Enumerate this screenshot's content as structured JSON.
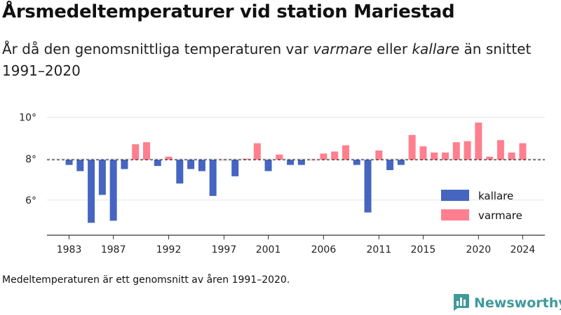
{
  "header": {
    "title": "Årsmedeltemperaturer vid station Mariestad",
    "subtitle_parts": {
      "prefix": "År då den genomsnittliga temperaturen var ",
      "warmer": "varmare",
      "middle": " eller ",
      "colder": "kallare",
      "suffix": " än snittet 1991–2020"
    }
  },
  "footnote": "Medeltemperaturen är ett genomsnitt av åren 1991–2020.",
  "brand": {
    "name": "Newsworthy",
    "icon": "newsworthy-logo-icon",
    "color": "#3f9a9a"
  },
  "chart_data": {
    "type": "bar",
    "title": "Årsmedeltemperaturer vid station Mariestad",
    "xlabel": "",
    "ylabel": "",
    "baseline": 7.95,
    "ylim": [
      4.3,
      10.6
    ],
    "xlim": [
      1981,
      2026
    ],
    "yticks": [
      6,
      8,
      10
    ],
    "ytick_labels": [
      "6°",
      "8°",
      "10°"
    ],
    "xticks": [
      1983,
      1987,
      1992,
      1997,
      2001,
      2006,
      2011,
      2015,
      2020,
      2024
    ],
    "grid": true,
    "legend_position": "right",
    "colors": {
      "kallare": "#4565c0",
      "varmare": "#ff7f8e",
      "baseline": "#333333",
      "grid": "#e6e6e6",
      "axis": "#333333"
    },
    "legend": [
      {
        "key": "kallare",
        "label": "kallare",
        "color": "#4565c0"
      },
      {
        "key": "varmare",
        "label": "varmare",
        "color": "#ff7f8e"
      }
    ],
    "years": [
      1983,
      1984,
      1985,
      1986,
      1987,
      1988,
      1989,
      1990,
      1991,
      1992,
      1993,
      1994,
      1995,
      1996,
      1997,
      1998,
      1999,
      2000,
      2001,
      2002,
      2003,
      2004,
      2005,
      2006,
      2007,
      2008,
      2009,
      2010,
      2011,
      2012,
      2013,
      2014,
      2015,
      2016,
      2017,
      2018,
      2019,
      2020,
      2021,
      2022,
      2023,
      2024
    ],
    "values": [
      7.7,
      7.4,
      4.9,
      6.25,
      5.0,
      7.5,
      8.7,
      8.8,
      7.65,
      8.1,
      6.8,
      7.5,
      7.4,
      6.2,
      7.95,
      7.15,
      8.0,
      8.75,
      7.4,
      8.2,
      7.7,
      7.7,
      7.95,
      8.25,
      8.35,
      8.65,
      7.7,
      5.4,
      8.4,
      7.45,
      7.7,
      9.15,
      8.6,
      8.3,
      8.3,
      8.8,
      8.85,
      9.75,
      8.1,
      8.9,
      8.3,
      8.75
    ]
  }
}
